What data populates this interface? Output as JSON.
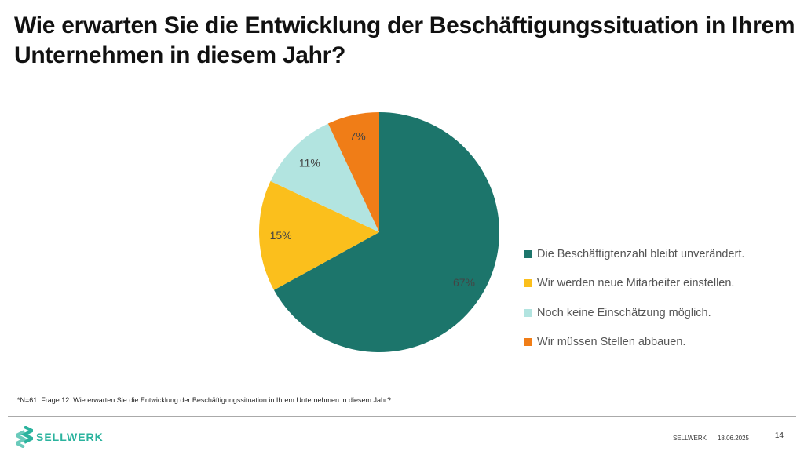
{
  "title": "Wie erwarten Sie die Entwicklung der Beschäftigungssituation in Ihrem Unternehmen in diesem Jahr?",
  "chart_data": {
    "type": "pie",
    "categories": [
      "Die Beschäftigtenzahl bleibt unverändert.",
      "Wir werden neue Mitarbeiter einstellen.",
      "Noch keine Einschätzung möglich.",
      "Wir müssen Stellen abbauen."
    ],
    "values": [
      67,
      15,
      11,
      7
    ],
    "data_labels": [
      "67%",
      "15%",
      "11%",
      "7%"
    ],
    "colors": [
      "#1c756b",
      "#fbbf1c",
      "#b2e4e0",
      "#f07d17"
    ],
    "legend_position": "right",
    "start": "top, clockwise"
  },
  "footnote": "*N=61, Frage 12: Wie erwarten Sie die Entwicklung der Beschäftigungssituation in Ihrem Unternehmen in diesem Jahr?",
  "footer": {
    "brand": "SELLWERK",
    "company": "SELLWERK",
    "date": "18.06.2025",
    "page": "14"
  }
}
